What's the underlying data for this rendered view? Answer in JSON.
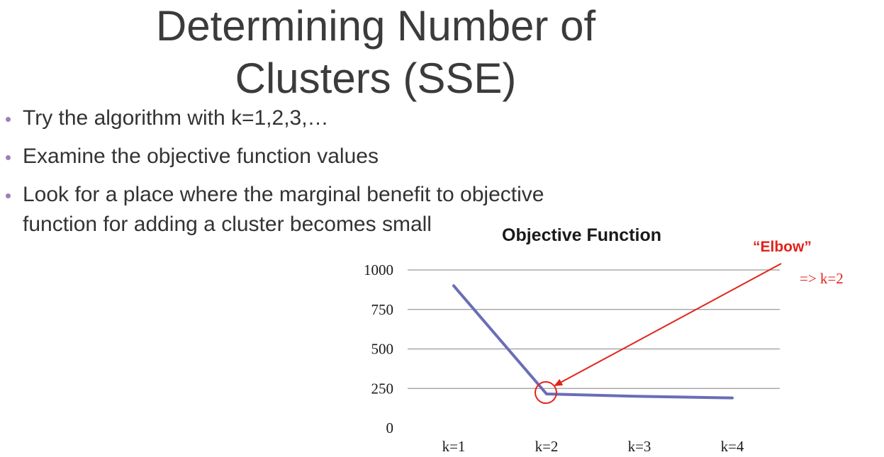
{
  "slide": {
    "title_line1": "Determining Number of",
    "title_line2": "Clusters (SSE)",
    "bullets": [
      "Try the algorithm with k=1,2,3,…",
      "Examine the objective function values",
      "Look for a place where the marginal benefit to objective function for adding a cluster becomes small"
    ]
  },
  "chart_data": {
    "type": "line",
    "title": "Objective Function",
    "categories": [
      "k=1",
      "k=2",
      "k=3",
      "k=4"
    ],
    "series": [
      {
        "values": [
          900,
          215,
          200,
          190
        ],
        "color": "#6a6db5"
      }
    ],
    "ylim": [
      0,
      1000
    ],
    "yticks": [
      "1000",
      "750",
      "500",
      "250",
      "0"
    ],
    "ytick_values": [
      1000,
      750,
      500,
      250,
      0
    ],
    "grid": true,
    "annotations": {
      "elbow_label": "“Elbow”",
      "elbow_result": "=>  k=2",
      "elbow_index": 1,
      "color": "#e2231a"
    }
  }
}
